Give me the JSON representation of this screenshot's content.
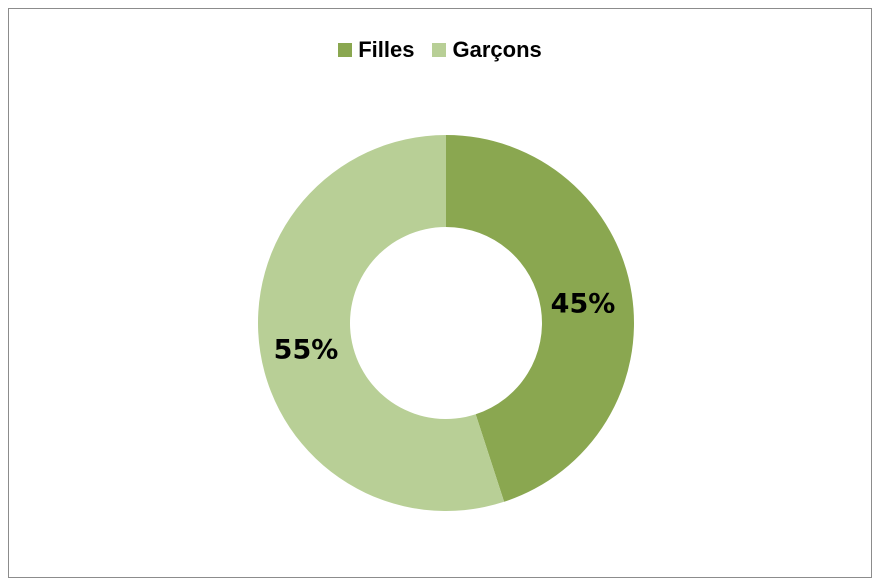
{
  "chart_data": {
    "type": "pie",
    "variant": "donut",
    "categories": [
      "Filles",
      "Garçons"
    ],
    "values": [
      45,
      55
    ],
    "value_labels": [
      "45%",
      "55%"
    ],
    "colors": [
      "#8aa750",
      "#b8cf96"
    ],
    "legend_position": "top",
    "title": "",
    "xlabel": "",
    "ylabel": ""
  }
}
